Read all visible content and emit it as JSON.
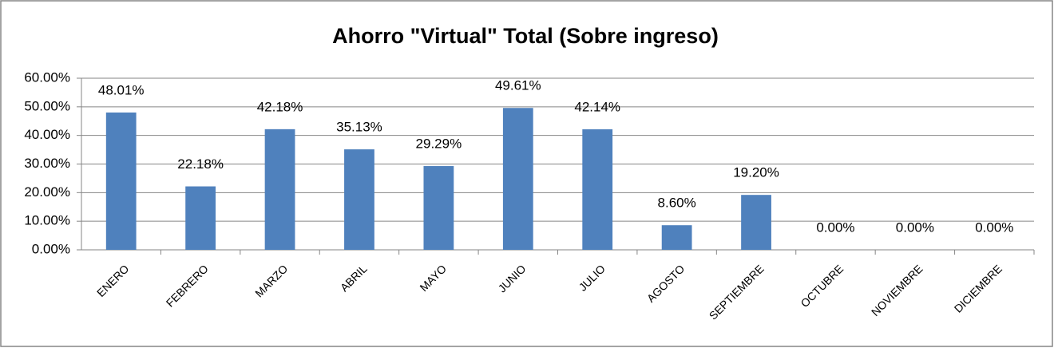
{
  "chart_data": {
    "type": "bar",
    "title": "Ahorro \"Virtual\" Total (Sobre ingreso)",
    "categories": [
      "ENERO",
      "FEBRERO",
      "MARZO",
      "ABRIL",
      "MAYO",
      "JUNIO",
      "JULIO",
      "AGOSTO",
      "SEPTIEMBRE",
      "OCTUBRE",
      "NOVIEMBRE",
      "DICIEMBRE"
    ],
    "values": [
      48.01,
      22.18,
      42.18,
      35.13,
      29.29,
      49.61,
      42.14,
      8.6,
      19.2,
      0,
      0,
      0
    ],
    "value_labels": [
      "48.01%",
      "22.18%",
      "42.18%",
      "35.13%",
      "29.29%",
      "49.61%",
      "42.14%",
      "8.60%",
      "19.20%",
      "0.00%",
      "0.00%",
      "0.00%"
    ],
    "color": "#4f81bd",
    "ylim": [
      0,
      60
    ],
    "yticks": [
      {
        "value": 0,
        "label": "0.00%"
      },
      {
        "value": 10,
        "label": "10.00%"
      },
      {
        "value": 20,
        "label": "20.00%"
      },
      {
        "value": 30,
        "label": "30.00%"
      },
      {
        "value": 40,
        "label": "40.00%"
      },
      {
        "value": 50,
        "label": "50.00%"
      },
      {
        "value": 60,
        "label": "60.00%"
      }
    ],
    "grid": true
  }
}
